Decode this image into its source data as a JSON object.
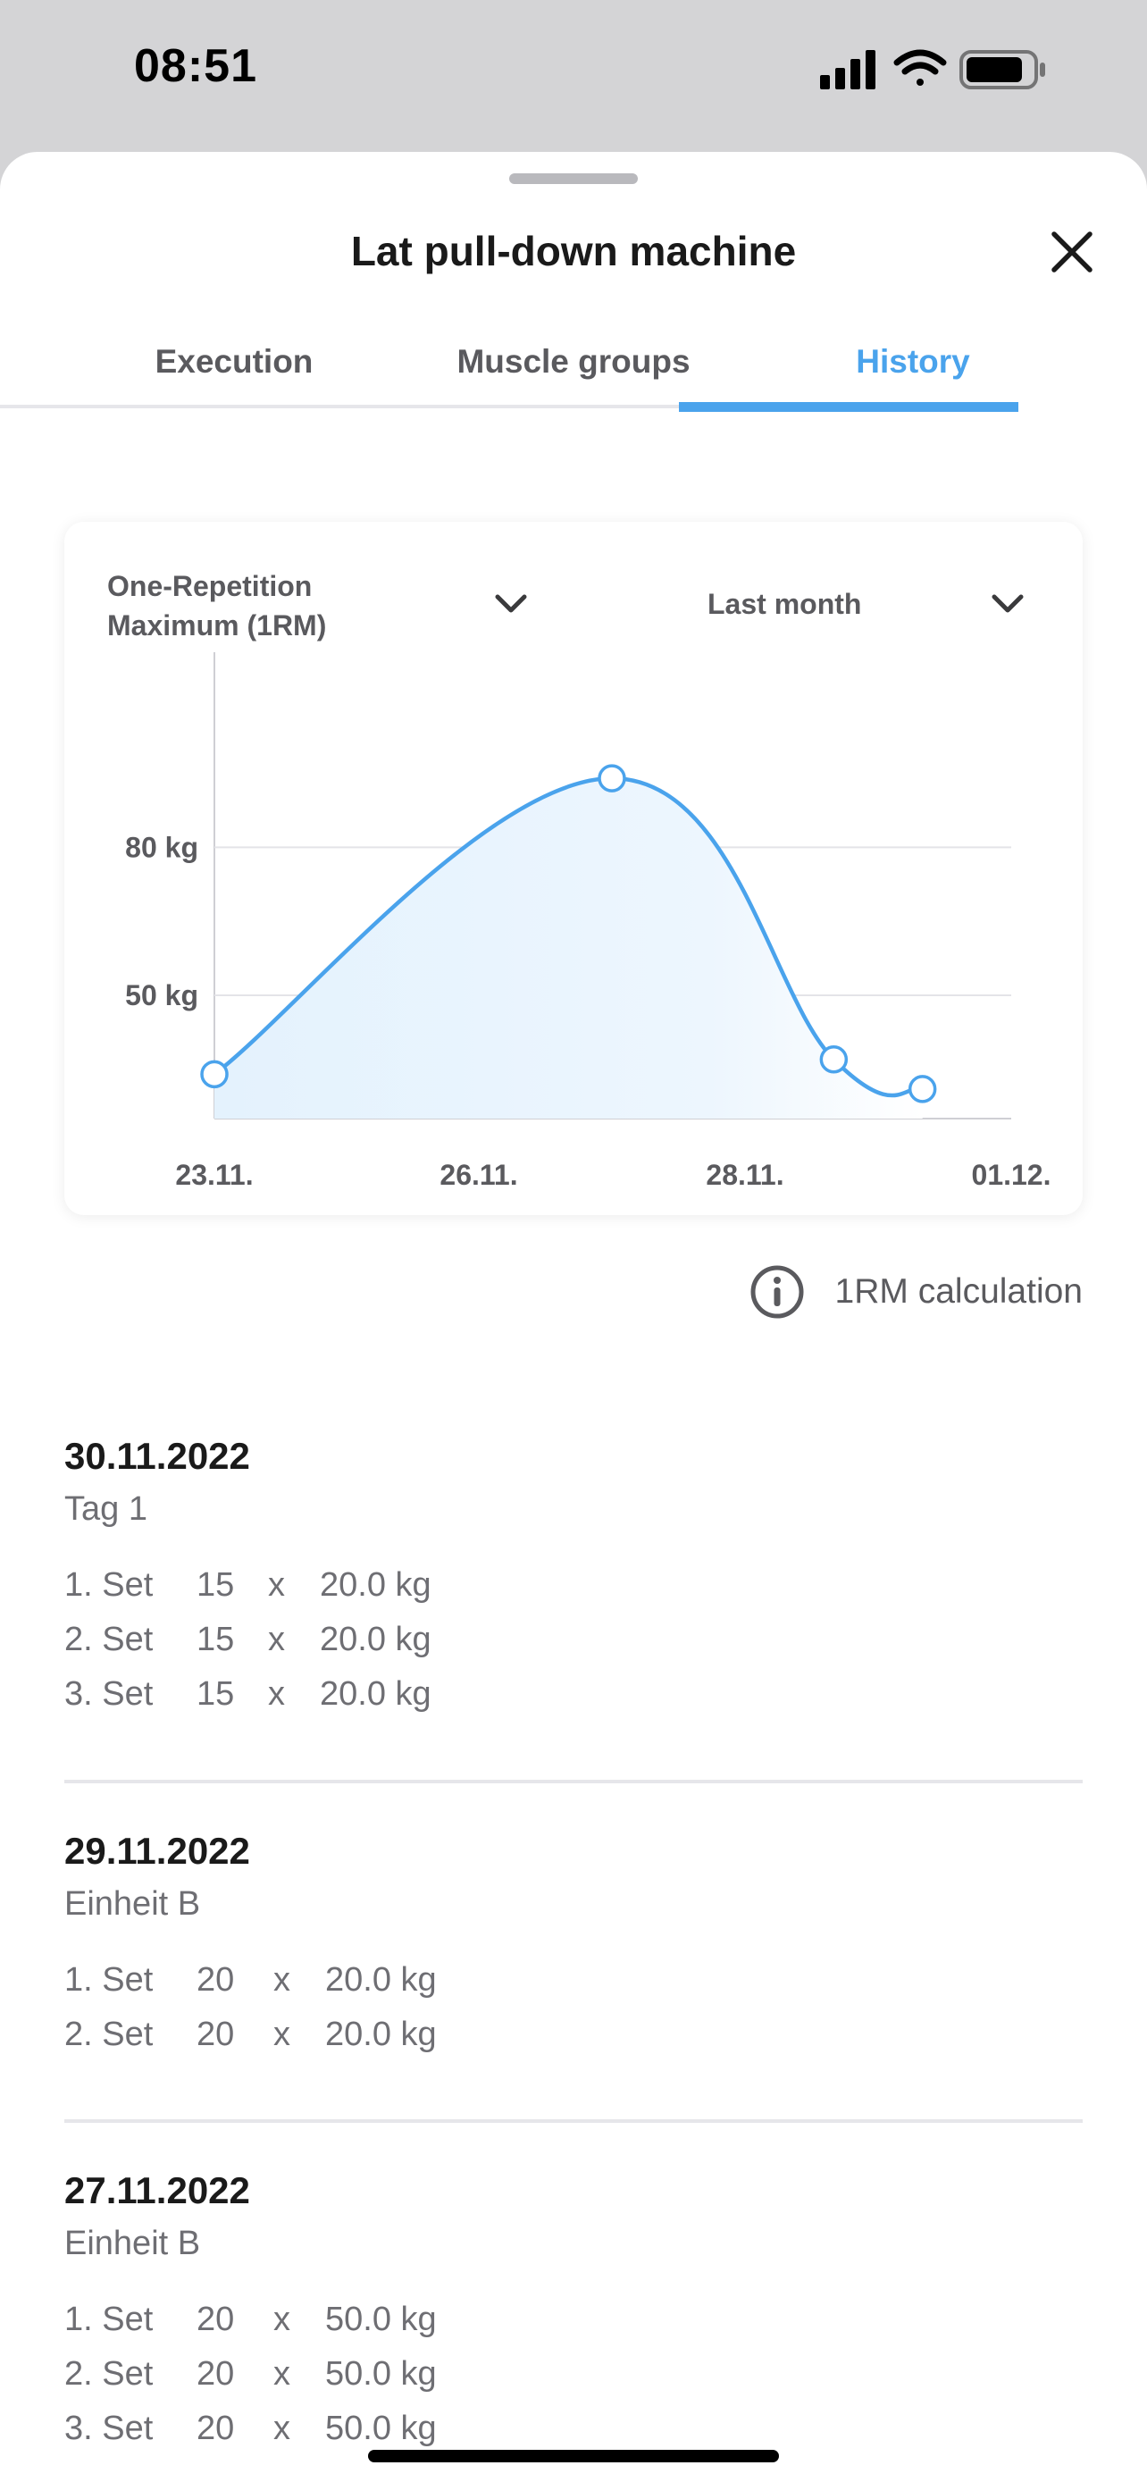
{
  "status_bar": {
    "time": "08:51",
    "icons": [
      "signal-icon",
      "wifi-icon",
      "battery-icon"
    ]
  },
  "sheet": {
    "title": "Lat pull-down machine",
    "close_icon": "close-icon"
  },
  "tabs": [
    {
      "label": "Execution",
      "active": false
    },
    {
      "label": "Muscle groups",
      "active": false
    },
    {
      "label": "History",
      "active": true
    }
  ],
  "chart_controls": {
    "metric": "One-Repetition Maximum (1RM)",
    "metric_line1": "One-Repetition",
    "metric_line2": "Maximum (1RM)",
    "range": "Last month"
  },
  "chart_data": {
    "type": "area",
    "title": "",
    "xlabel": "",
    "ylabel": "",
    "x_ticks": [
      "23.11.",
      "26.11.",
      "28.11.",
      "01.12."
    ],
    "y_ticks": [
      "80 kg",
      "50 kg"
    ],
    "y_tick_values": [
      80,
      50
    ],
    "ylim": [
      25,
      100
    ],
    "grid": true,
    "accent_color": "#4aa3ec",
    "series": [
      {
        "points": [
          {
            "x": "23.11.",
            "y": 34
          },
          {
            "x": "27.11.",
            "y": 94
          },
          {
            "x": "29.11.",
            "y": 37
          },
          {
            "x": "30.11.",
            "y": 31
          }
        ]
      }
    ]
  },
  "info": {
    "label": "1RM calculation",
    "icon": "info-icon"
  },
  "history": [
    {
      "date": "30.11.2022",
      "session": "Tag 1",
      "sets": [
        {
          "label": "1. Set",
          "reps": "15",
          "x": "x",
          "weight": "20.0 kg"
        },
        {
          "label": "2. Set",
          "reps": "15",
          "x": "x",
          "weight": "20.0 kg"
        },
        {
          "label": "3. Set",
          "reps": "15",
          "x": "x",
          "weight": "20.0 kg"
        }
      ]
    },
    {
      "date": "29.11.2022",
      "session": "Einheit B",
      "sets": [
        {
          "label": "1. Set",
          "reps": "20",
          "x": "x",
          "weight": "20.0 kg"
        },
        {
          "label": "2. Set",
          "reps": "20",
          "x": "x",
          "weight": "20.0 kg"
        }
      ]
    },
    {
      "date": "27.11.2022",
      "session": "Einheit B",
      "sets": [
        {
          "label": "1. Set",
          "reps": "20",
          "x": "x",
          "weight": "50.0 kg"
        },
        {
          "label": "2. Set",
          "reps": "20",
          "x": "x",
          "weight": "50.0 kg"
        },
        {
          "label": "3. Set",
          "reps": "20",
          "x": "x",
          "weight": "50.0 kg"
        }
      ]
    }
  ]
}
